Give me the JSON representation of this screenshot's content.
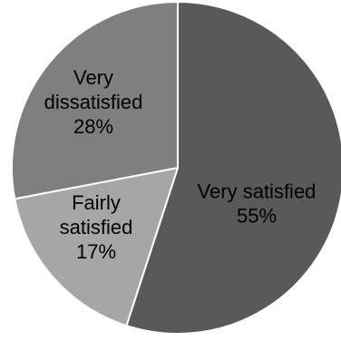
{
  "chart_data": {
    "type": "pie",
    "title": "",
    "slices": [
      {
        "label": "Very satisfied",
        "value": 55,
        "value_label": "55%",
        "color": "#595959",
        "label_lines": [
          "Very satisfied",
          "55%"
        ],
        "text_color": "#000000"
      },
      {
        "label": "Fairly satisfied",
        "value": 17,
        "value_label": "17%",
        "color": "#a6a6a6",
        "label_lines": [
          "Fairly",
          "satisfied",
          "17%"
        ],
        "text_color": "#000000"
      },
      {
        "label": "Very dissatisfied",
        "value": 28,
        "value_label": "28%",
        "color": "#7f7f7f",
        "label_lines": [
          "Very",
          "dissatisfied",
          "28%"
        ],
        "text_color": "#000000"
      }
    ],
    "start_angle": "12 o'clock",
    "direction": "clockwise",
    "legend": "none"
  }
}
